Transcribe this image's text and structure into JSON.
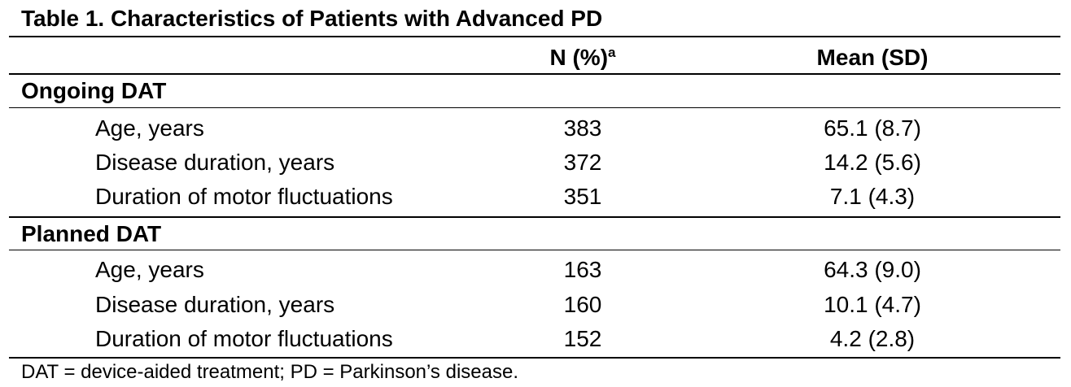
{
  "table": {
    "title": "Table 1. Characteristics of Patients with Advanced PD",
    "columns": {
      "n_label": "N (%)",
      "n_superscript": "a",
      "mean_label": "Mean (SD)"
    },
    "groups": [
      {
        "name": "Ongoing DAT",
        "rows": [
          {
            "label": "Age, years",
            "n": "383",
            "mean_sd": "65.1 (8.7)"
          },
          {
            "label": "Disease duration, years",
            "n": "372",
            "mean_sd": "14.2 (5.6)"
          },
          {
            "label": "Duration of motor fluctuations",
            "n": "351",
            "mean_sd": "7.1 (4.3)"
          }
        ]
      },
      {
        "name": "Planned DAT",
        "rows": [
          {
            "label": "Age, years",
            "n": "163",
            "mean_sd": "64.3 (9.0)"
          },
          {
            "label": "Disease duration, years",
            "n": "160",
            "mean_sd": "10.1 (4.7)"
          },
          {
            "label": "Duration of motor fluctuations",
            "n": "152",
            "mean_sd": "4.2 (2.8)"
          }
        ]
      }
    ],
    "footnote": "DAT = device-aided treatment; PD = Parkinson’s disease."
  }
}
